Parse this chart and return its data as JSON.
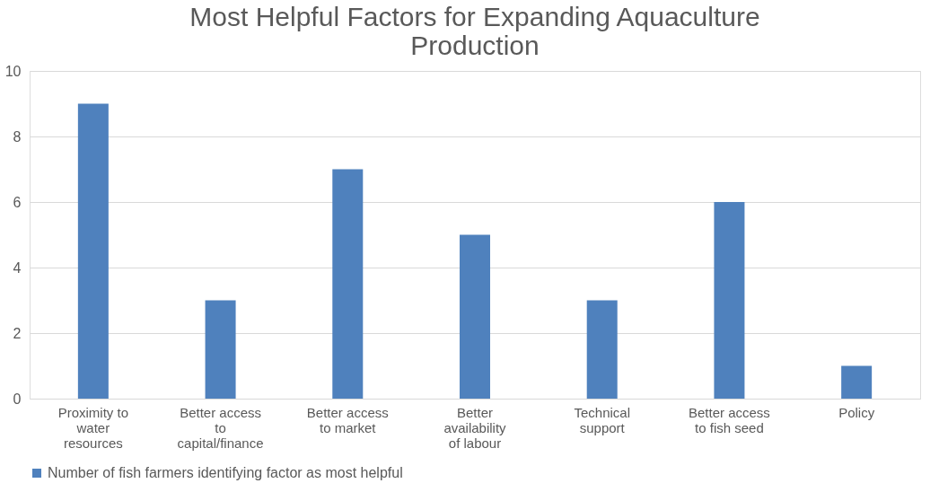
{
  "chart_data": {
    "type": "bar",
    "title": "Most Helpful Factors for Expanding Aquaculture Production",
    "categories": [
      "Proximity to water resources",
      "Better access to capital/finance",
      "Better access to market",
      "Better availability of labour",
      "Technical support",
      "Better access to fish seed",
      "Policy"
    ],
    "series": [
      {
        "name": "Number of fish farmers identifying factor as most helpful",
        "color": "#4f81bd",
        "values": [
          9,
          3,
          7,
          5,
          3,
          6,
          1
        ]
      }
    ],
    "ylim": [
      0,
      10
    ],
    "yticks": [
      0,
      2,
      4,
      6,
      8,
      10
    ],
    "grid": "y",
    "legend": "bottom"
  }
}
